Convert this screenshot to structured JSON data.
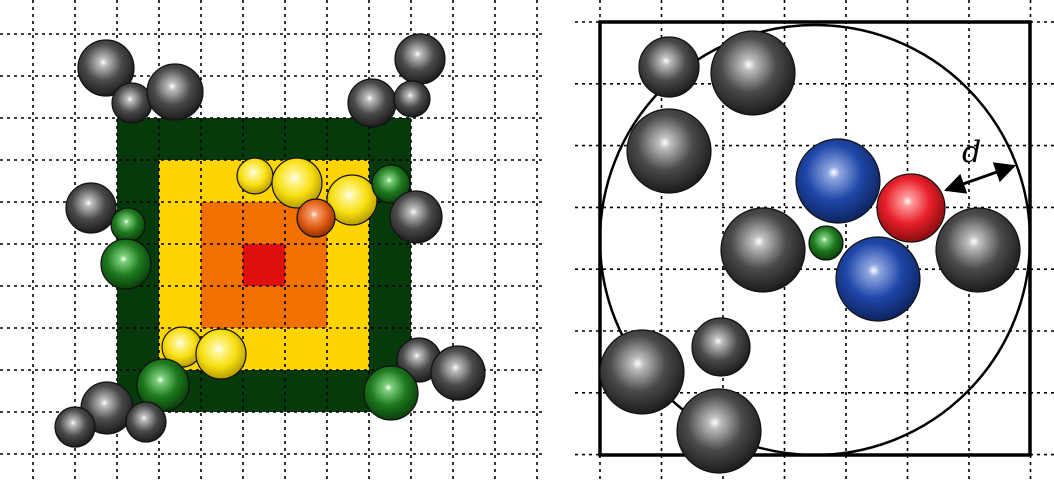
{
  "figure": {
    "distance_label": "d"
  },
  "colors": {
    "background": "#ffffff",
    "grid": "#000000",
    "dark_green": "#073a0b",
    "yellow": "#ffd400",
    "orange": "#f07000",
    "red": "#e01010",
    "gray_particle": "#3a3a3a",
    "green_particle": "#1b7a1b",
    "yellow_particle": "#ffe000",
    "orange_particle": "#e05a10",
    "blue_particle": "#1a3d9a",
    "red_particle": "#e8202a"
  },
  "particle_types": [
    "gray",
    "green",
    "yellow",
    "orange",
    "blue",
    "red"
  ]
}
